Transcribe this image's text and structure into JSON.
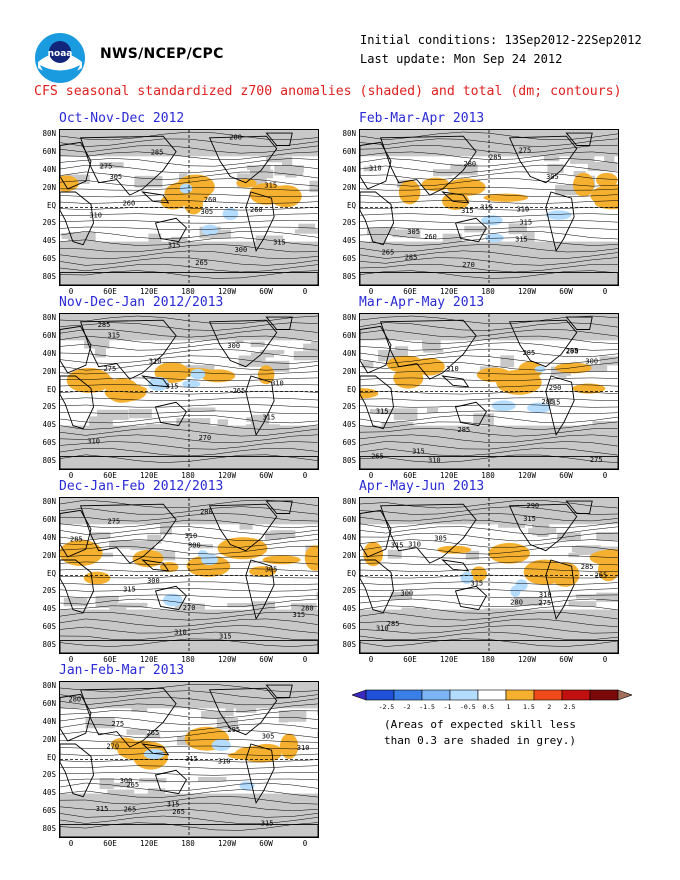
{
  "header": {
    "agency": "NWS/NCEP/CPC",
    "initial_conditions": "Initial conditions: 13Sep2012-22Sep2012",
    "last_update": "Last update: Mon Sep 24 2012",
    "title": "CFS seasonal standardized z700 anomalies (shaded) and total (dm; contours)",
    "logo_text": "noaa"
  },
  "axes": {
    "lat_labels": [
      "80N",
      "60N",
      "40N",
      "20N",
      "EQ",
      "20S",
      "40S",
      "60S",
      "80S"
    ],
    "lon_labels": [
      "0",
      "60E",
      "120E",
      "180",
      "120W",
      "60W",
      "0"
    ]
  },
  "panels": [
    {
      "title": "Oct-Nov-Dec 2012",
      "contour_labels": [
        "275",
        "280",
        "285",
        "305",
        "315",
        "315",
        "315",
        "310",
        "300",
        "305",
        "260",
        "265",
        "260",
        "260"
      ]
    },
    {
      "title": "Feb-Mar-Apr 2013",
      "contour_labels": [
        "275",
        "280",
        "285",
        "305",
        "310",
        "315",
        "315",
        "315",
        "315",
        "310",
        "305",
        "285",
        "265",
        "270",
        "260"
      ]
    },
    {
      "title": "Nov-Dec-Jan 2012/2013",
      "contour_labels": [
        "275",
        "285",
        "300",
        "310",
        "315",
        "315",
        "315",
        "310",
        "310",
        "265",
        "270"
      ]
    },
    {
      "title": "Mar-Apr-May 2013",
      "contour_labels": [
        "285",
        "290",
        "285",
        "300",
        "310",
        "315",
        "315",
        "310",
        "315",
        "290",
        "275",
        "285",
        "265",
        "285"
      ]
    },
    {
      "title": "Dec-Jan-Feb 2012/2013",
      "contour_labels": [
        "275",
        "280",
        "285",
        "300",
        "310",
        "315",
        "315",
        "315",
        "310",
        "305",
        "300",
        "280",
        "270"
      ]
    },
    {
      "title": "Apr-May-Jun 2013",
      "contour_labels": [
        "290",
        "305",
        "310",
        "315",
        "315",
        "315",
        "310",
        "310",
        "300",
        "285",
        "275",
        "280",
        "265",
        "285"
      ]
    },
    {
      "title": "Jan-Feb-Mar 2013",
      "contour_labels": [
        "275",
        "280",
        "265",
        "295",
        "305",
        "310",
        "315",
        "315",
        "315",
        "310",
        "315",
        "300",
        "265",
        "265",
        "270",
        "265"
      ]
    }
  ],
  "legend": {
    "ticks": [
      "-2.5",
      "-2",
      "-1.5",
      "-1",
      "-0.5",
      "0.5",
      "1",
      "1.5",
      "2",
      "2.5"
    ],
    "colors": [
      "#3a2ac0",
      "#2050d8",
      "#3a7ee8",
      "#7cb4f5",
      "#b4dcff",
      "#ffffff",
      "#f5b030",
      "#f04a1a",
      "#c01010",
      "#7a0a0a",
      "#a0705a"
    ],
    "note_line1": "(Areas of expected skill less",
    "note_line2": "than 0.3 are shaded in grey.)"
  },
  "colors": {
    "title_red": "#e02020",
    "panel_title_blue": "#2a2ad6",
    "positive_anomaly": "#f5b030",
    "negative_anomaly": "#b4dcff",
    "low_skill_grey": "#c8c8c8"
  }
}
